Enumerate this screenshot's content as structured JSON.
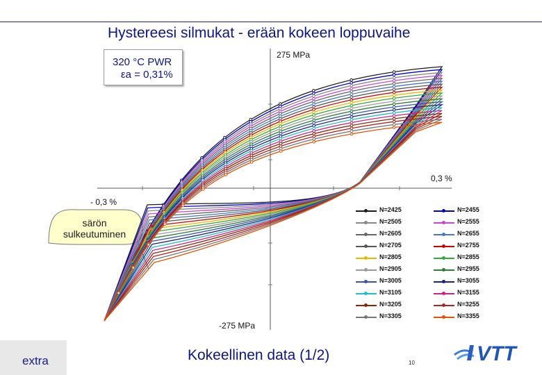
{
  "slide": {
    "title": "Hystereesi silmukat  -  erään kokeen loppuvaihe",
    "condition_line1": "320 °C PWR",
    "condition_line2": "εa = 0,31%",
    "y_top_label": "275 MPa",
    "y_bottom_label": "-275 MPa",
    "x_right_label": "0,3 %",
    "x_left_label": "- 0,3 %",
    "callout_label": "särön sulkeutuminen",
    "footer_tag": "extra",
    "footer_title": "Kokeellinen data (1/2)",
    "page_number": "10",
    "logo_text": "VTT"
  },
  "chart_data": {
    "type": "line",
    "title": "Hystereesi silmukat  -  erään kokeen loppuvaihe",
    "xlabel": "",
    "ylabel": "",
    "series": [
      {
        "name": "N=2425",
        "color": "#1a1a1a"
      },
      {
        "name": "N=2455",
        "color": "#0000cc"
      },
      {
        "name": "N=2505",
        "color": "#888888"
      },
      {
        "name": "N=2555",
        "color": "#cc44cc"
      },
      {
        "name": "N=2605",
        "color": "#666666"
      },
      {
        "name": "N=2655",
        "color": "#4477cc"
      },
      {
        "name": "N=2705",
        "color": "#555555"
      },
      {
        "name": "N=2755",
        "color": "#cc0000"
      },
      {
        "name": "N=2805",
        "color": "#e6b800"
      },
      {
        "name": "N=2855",
        "color": "#33aa33"
      },
      {
        "name": "N=2905",
        "color": "#999999"
      },
      {
        "name": "N=2955",
        "color": "#2e7d32"
      },
      {
        "name": "N=3005",
        "color": "#3355aa"
      },
      {
        "name": "N=3055",
        "color": "#1a237e"
      },
      {
        "name": "N=3105",
        "color": "#22bbcc"
      },
      {
        "name": "N=3155",
        "color": "#cc2288"
      },
      {
        "name": "N=3205",
        "color": "#8b2500"
      },
      {
        "name": "N=3255",
        "color": "#b22222"
      },
      {
        "name": "N=3305",
        "color": "#777777"
      },
      {
        "name": "N=3355",
        "color": "#e65100"
      }
    ],
    "legend": "bottom-right",
    "grid": false
  }
}
